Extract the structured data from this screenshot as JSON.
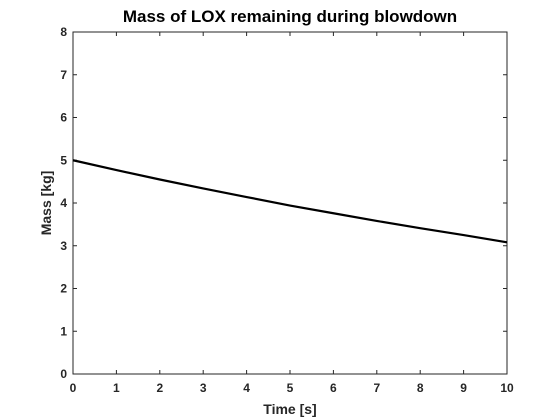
{
  "chart_data": {
    "type": "line",
    "title": "Mass of LOX remaining during blowdown",
    "xlabel": "Time [s]",
    "ylabel": "Mass [kg]",
    "xlim": [
      0,
      10
    ],
    "ylim": [
      0,
      8
    ],
    "xticks": [
      0,
      1,
      2,
      3,
      4,
      5,
      6,
      7,
      8,
      9,
      10
    ],
    "yticks": [
      0,
      1,
      2,
      3,
      4,
      5,
      6,
      7,
      8
    ],
    "grid": false,
    "legend": "none",
    "series": [
      {
        "color": "#000000",
        "x": [
          0,
          1,
          2,
          3,
          4,
          5,
          6,
          7,
          8,
          9,
          10
        ],
        "y": [
          5.0,
          4.77,
          4.55,
          4.34,
          4.14,
          3.94,
          3.76,
          3.58,
          3.41,
          3.25,
          3.08
        ]
      }
    ]
  }
}
